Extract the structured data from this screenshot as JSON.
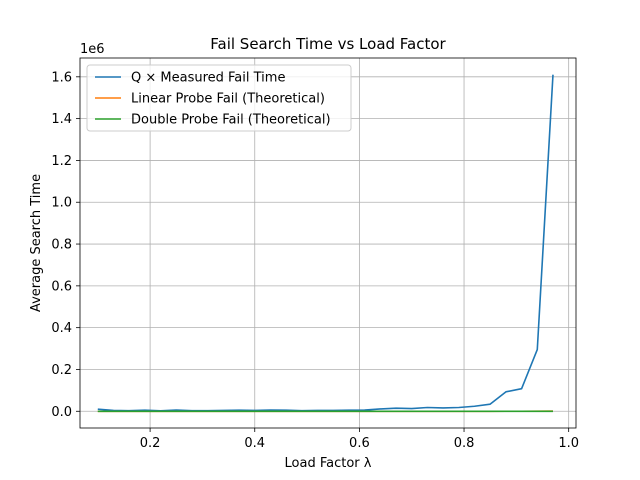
{
  "chart_data": {
    "type": "line",
    "title": "Fail Search Time vs Load Factor",
    "xlabel": "Load Factor λ",
    "ylabel": "Average Search Time",
    "y_offset_label": "1e6",
    "xlim": [
      0.066,
      1.014
    ],
    "ylim": [
      -80000,
      1690000
    ],
    "x_ticks": [
      0.2,
      0.4,
      0.6,
      0.8,
      1.0
    ],
    "x_tick_labels": [
      "0.2",
      "0.4",
      "0.6",
      "0.8",
      "1.0"
    ],
    "y_ticks": [
      0,
      200000,
      400000,
      600000,
      800000,
      1000000,
      1200000,
      1400000,
      1600000
    ],
    "y_tick_labels": [
      "0.0",
      "0.2",
      "0.4",
      "0.6",
      "0.8",
      "1.0",
      "1.2",
      "1.4",
      "1.6"
    ],
    "grid": true,
    "legend_position": "top-left",
    "x": [
      0.1,
      0.13,
      0.16,
      0.19,
      0.22,
      0.25,
      0.28,
      0.31,
      0.34,
      0.37,
      0.4,
      0.43,
      0.46,
      0.49,
      0.52,
      0.55,
      0.58,
      0.61,
      0.64,
      0.67,
      0.7,
      0.73,
      0.76,
      0.79,
      0.82,
      0.85,
      0.88,
      0.91,
      0.94,
      0.97
    ],
    "series": [
      {
        "name": "Q × Measured Fail Time",
        "color": "#1f77b4",
        "values": [
          10000,
          4000,
          3000,
          5000,
          2000,
          6000,
          3000,
          3000,
          4000,
          5000,
          4000,
          6000,
          5000,
          3000,
          4000,
          4000,
          5000,
          6000,
          11000,
          15000,
          13000,
          18000,
          16000,
          18000,
          24000,
          34000,
          93000,
          108000,
          295000,
          1610000
        ]
      },
      {
        "name": "Linear Probe Fail (Theoretical)",
        "color": "#ff7f0e",
        "values": [
          1,
          1,
          1,
          2,
          2,
          2,
          2,
          2,
          3,
          3,
          3,
          4,
          4,
          5,
          5,
          6,
          7,
          7,
          8,
          10,
          12,
          14,
          18,
          23,
          31,
          45,
          70,
          124,
          278,
          1112
        ]
      },
      {
        "name": "Double Probe Fail (Theoretical)",
        "color": "#2ca02c",
        "values": [
          1,
          1,
          1,
          1,
          1,
          1,
          1,
          1,
          2,
          2,
          2,
          2,
          2,
          2,
          2,
          2,
          2,
          3,
          3,
          3,
          3,
          4,
          4,
          5,
          6,
          7,
          8,
          11,
          17,
          33
        ]
      }
    ]
  }
}
